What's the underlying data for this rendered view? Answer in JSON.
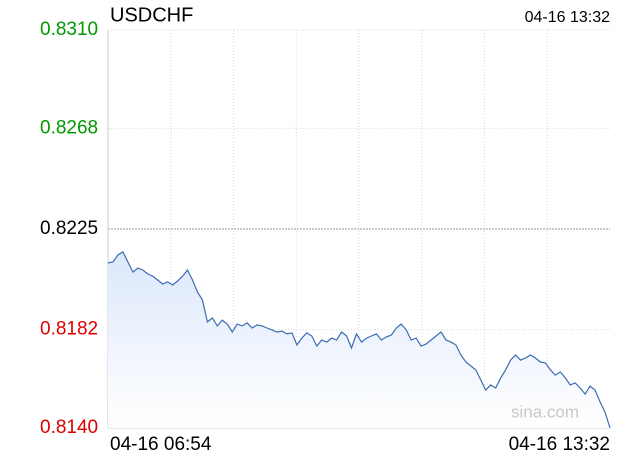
{
  "chart_data": {
    "type": "line",
    "title": "USDCHF",
    "timestamp": "04-16 13:32",
    "watermark": "sina.com",
    "ylim": [
      0.814,
      0.831
    ],
    "yticks": [
      {
        "value": 0.831,
        "label": "0.8310"
      },
      0.8268,
      0.8225,
      0.8182,
      {
        "value": 0.814,
        "label": "0.8140"
      }
    ],
    "ytick_colors": [
      "#009900",
      "#009900",
      "#000000",
      "#dd0000",
      "#dd0000"
    ],
    "baseline": 0.8225,
    "grid": true,
    "categories": [
      "04-16 06:54",
      null,
      null,
      null,
      null,
      null,
      null,
      null,
      null,
      null,
      null,
      null,
      null,
      null,
      null,
      null,
      null,
      null,
      null,
      null,
      null,
      null,
      null,
      null,
      null,
      null,
      null,
      null,
      null,
      null,
      null,
      null,
      null,
      null,
      null,
      null,
      null,
      null,
      null,
      null,
      null,
      null,
      null,
      null,
      null,
      null,
      null,
      null,
      null,
      null,
      null,
      null,
      null,
      null,
      null,
      null,
      null,
      null,
      null,
      null,
      null,
      null,
      null,
      null,
      null,
      null,
      null,
      null,
      null,
      null,
      null,
      null,
      null,
      null,
      null,
      null,
      null,
      null,
      null,
      null,
      null,
      null,
      null,
      null,
      null,
      null,
      null,
      null,
      null,
      null,
      null,
      null,
      null,
      null,
      null,
      null,
      null,
      null,
      null,
      null,
      null,
      "04-16 13:32"
    ],
    "series": [
      {
        "name": "USDCHF",
        "color": "#3b6db3",
        "values": [
          0.82105,
          0.82109,
          0.82139,
          0.82152,
          0.82109,
          0.82066,
          0.82083,
          0.82075,
          0.82058,
          0.82049,
          0.82032,
          0.82015,
          0.82024,
          0.82011,
          0.82028,
          0.82049,
          0.82075,
          0.82032,
          0.81981,
          0.81947,
          0.81853,
          0.8187,
          0.81836,
          0.81861,
          0.81844,
          0.8181,
          0.81844,
          0.81836,
          0.81849,
          0.81827,
          0.8184,
          0.81836,
          0.81827,
          0.81819,
          0.8181,
          0.81814,
          0.81802,
          0.81806,
          0.81755,
          0.81784,
          0.81806,
          0.81793,
          0.8175,
          0.81776,
          0.81767,
          0.81784,
          0.81776,
          0.8181,
          0.81793,
          0.81742,
          0.81802,
          0.81767,
          0.81784,
          0.81793,
          0.81802,
          0.81776,
          0.81789,
          0.81797,
          0.81827,
          0.81844,
          0.81819,
          0.81776,
          0.81784,
          0.8175,
          0.81759,
          0.81776,
          0.81793,
          0.8181,
          0.81776,
          0.81767,
          0.81755,
          0.81712,
          0.81682,
          0.81665,
          0.81648,
          0.81605,
          0.81562,
          0.81584,
          0.81571,
          0.81614,
          0.81648,
          0.8169,
          0.81712,
          0.8169,
          0.81699,
          0.81712,
          0.81699,
          0.81682,
          0.81678,
          0.81648,
          0.81626,
          0.81639,
          0.81614,
          0.81584,
          0.81592,
          0.81571,
          0.81545,
          0.81579,
          0.81562,
          0.81511,
          0.81468,
          0.814
        ]
      }
    ]
  }
}
